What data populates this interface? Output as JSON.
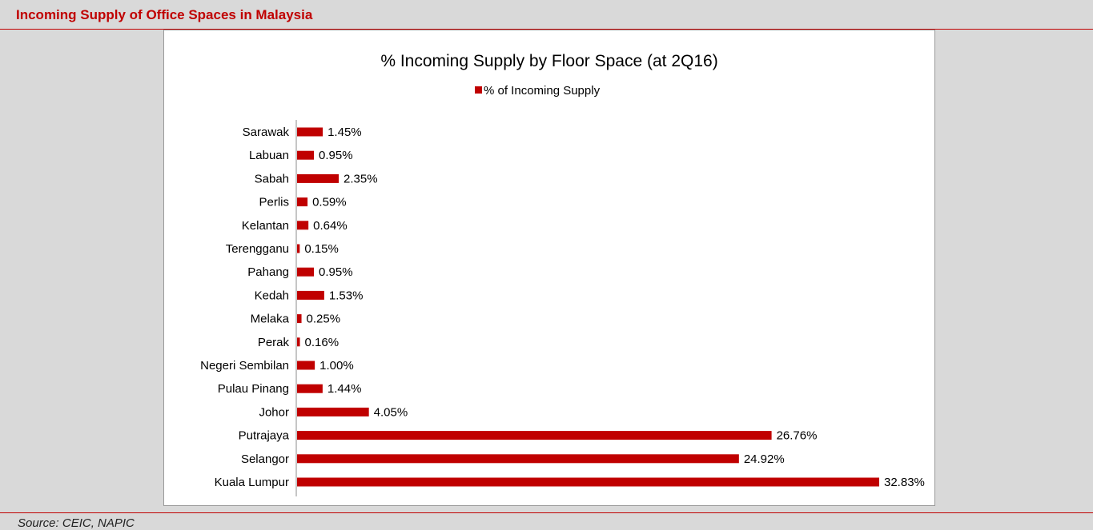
{
  "header": {
    "title": "Incoming Supply of Office Spaces in Malaysia"
  },
  "footer": {
    "source": "Source: CEIC, NAPIC"
  },
  "colors": {
    "accent": "#c00000",
    "bar": "#c00000"
  },
  "chart_data": {
    "type": "bar",
    "orientation": "horizontal",
    "title": "% Incoming Supply by Floor Space (at 2Q16)",
    "legend": {
      "position": "top",
      "entries": [
        "% of Incoming Supply"
      ]
    },
    "categories": [
      "Sarawak",
      "Labuan",
      "Sabah",
      "Perlis",
      "Kelantan",
      "Terengganu",
      "Pahang",
      "Kedah",
      "Melaka",
      "Perak",
      "Negeri Sembilan",
      "Pulau Pinang",
      "Johor",
      "Putrajaya",
      "Selangor",
      "Kuala Lumpur"
    ],
    "series": [
      {
        "name": "% of Incoming Supply",
        "values": [
          1.45,
          0.95,
          2.35,
          0.59,
          0.64,
          0.15,
          0.95,
          1.53,
          0.25,
          0.16,
          1.0,
          1.44,
          4.05,
          26.76,
          24.92,
          32.83
        ],
        "labels": [
          "1.45%",
          "0.95%",
          "2.35%",
          "0.59%",
          "0.64%",
          "0.15%",
          "0.95%",
          "1.53%",
          "0.25%",
          "0.16%",
          "1.00%",
          "1.44%",
          "4.05%",
          "26.76%",
          "24.92%",
          "32.83%"
        ]
      }
    ],
    "xlim": [
      0,
      32.83
    ],
    "grid": false
  }
}
